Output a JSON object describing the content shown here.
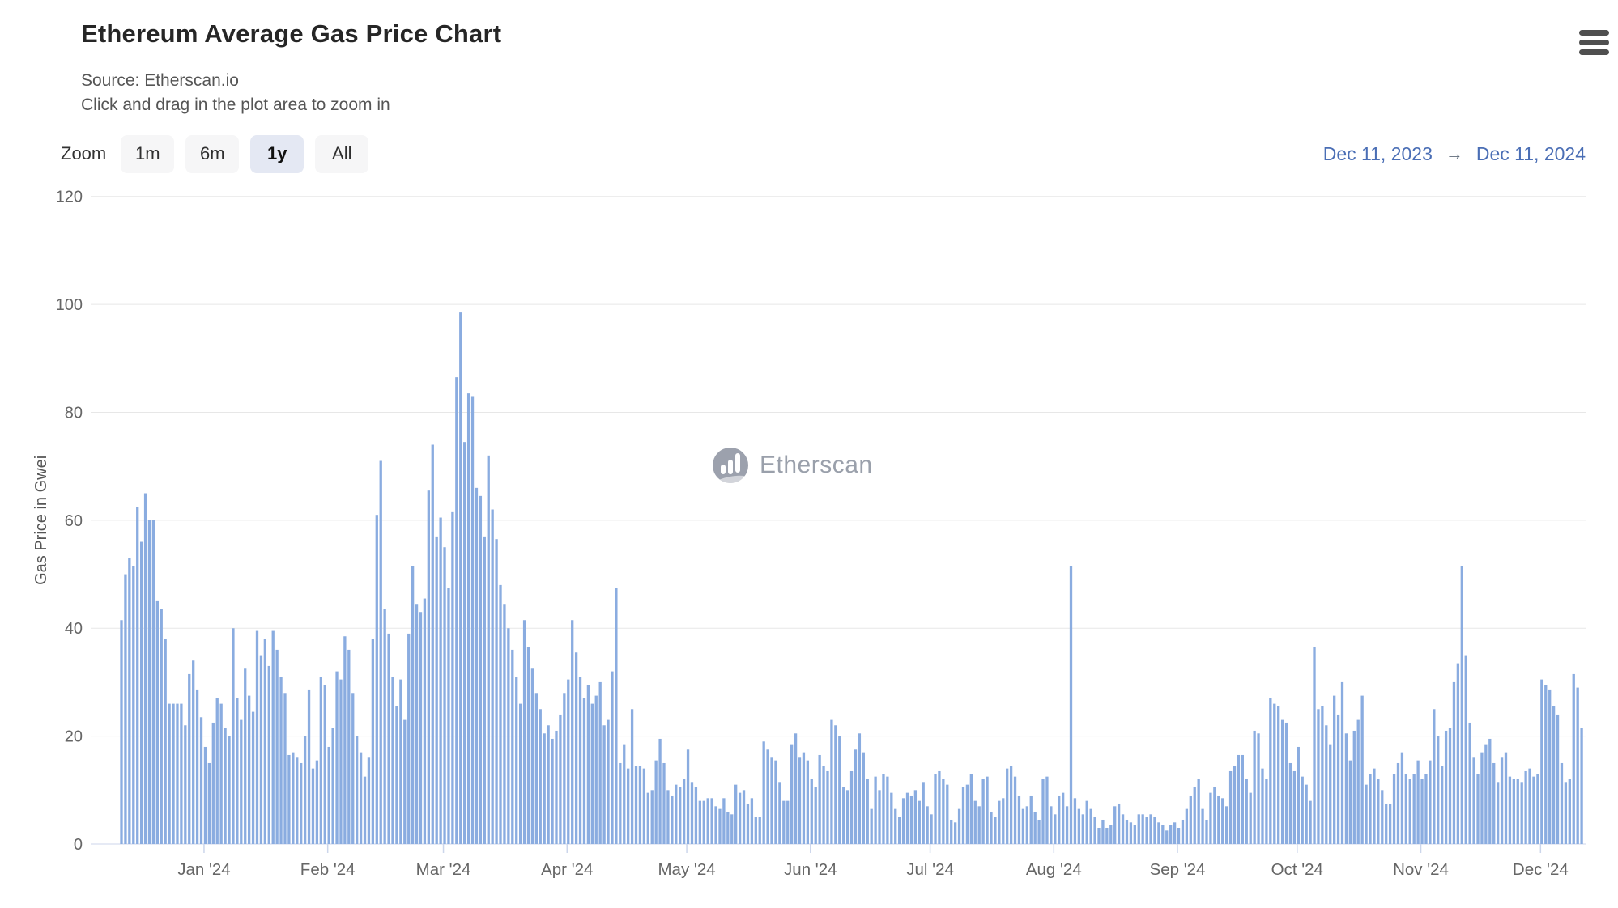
{
  "header": {
    "title": "Ethereum Average Gas Price Chart",
    "subtitle_source": "Source: Etherscan.io",
    "subtitle_hint": "Click and drag in the plot area to zoom in"
  },
  "toolbar": {
    "zoom_label": "Zoom",
    "buttons": [
      {
        "label": "1m",
        "active": false
      },
      {
        "label": "6m",
        "active": false
      },
      {
        "label": "1y",
        "active": true
      },
      {
        "label": "All",
        "active": false
      }
    ],
    "date_range": {
      "from": "Dec 11, 2023",
      "arrow": "→",
      "to": "Dec 11, 2024"
    }
  },
  "watermark": {
    "icon": "etherscan-logo",
    "text": "Etherscan"
  },
  "colors": {
    "bar": "#8aace0",
    "grid": "#e7e7e7",
    "axis_line": "#ccd6eb",
    "tick": "#ccd6eb",
    "axis_label": "#666666",
    "axis_title": "#555555",
    "date_link": "#4a6eb5",
    "watermark_text": "#9aa0ab",
    "background": "#ffffff"
  },
  "chart_data": {
    "type": "bar",
    "unit": "Gwei",
    "title": "Ethereum Average Gas Price Chart",
    "ylabel": "Gas Price in Gwei",
    "ylim": [
      0,
      120
    ],
    "y_ticks": [
      0,
      20,
      40,
      60,
      80,
      100,
      120
    ],
    "grid": true,
    "legend": false,
    "start_date": "2023-12-11",
    "end_date": "2024-12-11",
    "frequency": "daily",
    "x_tick_labels": [
      "Jan '24",
      "Feb '24",
      "Mar '24",
      "Apr '24",
      "May '24",
      "Jun '24",
      "Jul '24",
      "Aug '24",
      "Sep '24",
      "Oct '24",
      "Nov '24",
      "Dec '24"
    ],
    "x_tick_day_indices": [
      21,
      52,
      81,
      112,
      142,
      173,
      203,
      234,
      265,
      295,
      326,
      356
    ],
    "values": [
      41.5,
      50,
      53,
      51.5,
      62.5,
      56,
      65,
      60,
      60,
      45,
      43.5,
      38,
      26,
      26,
      26,
      26,
      22,
      31.5,
      34,
      28.5,
      23.5,
      18,
      15,
      22.5,
      27,
      26,
      21.5,
      20,
      40,
      27,
      23,
      32.5,
      27.5,
      24.5,
      39.5,
      35,
      38,
      33,
      39.5,
      36,
      31,
      28,
      16.5,
      17,
      16,
      15,
      20,
      28.5,
      14,
      15.5,
      31,
      29.5,
      18,
      21.5,
      32,
      30.5,
      38.5,
      36,
      28,
      20,
      17,
      12.5,
      16,
      38,
      61,
      71,
      43.5,
      39,
      31,
      25.5,
      30.5,
      23,
      39,
      51.5,
      44.5,
      43,
      45.5,
      65.5,
      74,
      57,
      60.5,
      55,
      47.5,
      61.5,
      86.5,
      98.5,
      74.5,
      83.5,
      83,
      66,
      64.5,
      57,
      72,
      62,
      56.5,
      48,
      44.5,
      40,
      36,
      31,
      26,
      41.5,
      36.5,
      32.5,
      28,
      25,
      20.5,
      22,
      19.5,
      21,
      24,
      28,
      30.5,
      41.5,
      35.5,
      31,
      27,
      29.5,
      26,
      27.5,
      30,
      22,
      23,
      32,
      47.5,
      15,
      18.5,
      14,
      25,
      14.5,
      14.5,
      14,
      9.5,
      10,
      15.5,
      19.5,
      15,
      10,
      9,
      11,
      10.5,
      12,
      17.5,
      11.5,
      10.5,
      8,
      8,
      8.5,
      8.5,
      7,
      6.5,
      8.5,
      6,
      5.5,
      11,
      9.5,
      10,
      7.5,
      8.5,
      5,
      5,
      19,
      17.5,
      16,
      15.5,
      11.5,
      8,
      8,
      18.5,
      20.5,
      16,
      17,
      15.5,
      12,
      10.5,
      16.5,
      14.5,
      13.5,
      23,
      22,
      20,
      10.5,
      10,
      13.5,
      17.5,
      20.5,
      17,
      12,
      6.5,
      12.5,
      10,
      13,
      12.5,
      9.5,
      6.5,
      5,
      8.5,
      9.5,
      9,
      10,
      8,
      11.5,
      7,
      5.5,
      13,
      13.5,
      12,
      11,
      4.5,
      4,
      6.5,
      10.5,
      11,
      13,
      8,
      7,
      12,
      12.5,
      6,
      5,
      8,
      8.5,
      14,
      14.5,
      12.5,
      9,
      6.5,
      7,
      9,
      6,
      4.5,
      12,
      12.5,
      7,
      5.5,
      9,
      9.5,
      7,
      51.5,
      8.5,
      6.5,
      5.5,
      8,
      6.5,
      5,
      3,
      4.5,
      3,
      3.5,
      7,
      7.5,
      5.5,
      4.5,
      4,
      3.5,
      5.5,
      5.5,
      5,
      5.5,
      5,
      4,
      3.5,
      2.5,
      3.5,
      4,
      3,
      4.5,
      6.5,
      9,
      10.5,
      12,
      6.5,
      4.5,
      9.5,
      10.5,
      9,
      8.5,
      7,
      13.5,
      14.5,
      16.5,
      16.5,
      12,
      9.5,
      21,
      20.5,
      14,
      12,
      27,
      26,
      25.5,
      23,
      22.5,
      15,
      13.5,
      18,
      12.5,
      11,
      8,
      36.5,
      25,
      25.5,
      22,
      18.5,
      27.5,
      24,
      30,
      20.5,
      15.5,
      21,
      23,
      27.5,
      11,
      13,
      14,
      12,
      10,
      7.5,
      7.5,
      13,
      15,
      17,
      13,
      12,
      13,
      15.5,
      12,
      13,
      15.5,
      25,
      20,
      14.5,
      21,
      21.5,
      30,
      33.5,
      51.5,
      35,
      22.5,
      16,
      13,
      17,
      18.5,
      19.5,
      15,
      11.5,
      16,
      17,
      12.5,
      12,
      12,
      11.5,
      13.5,
      14,
      12.5,
      13,
      30.5,
      29.5,
      28.5,
      25.5,
      24,
      15,
      11.5,
      12,
      31.5,
      29,
      21.5
    ]
  }
}
